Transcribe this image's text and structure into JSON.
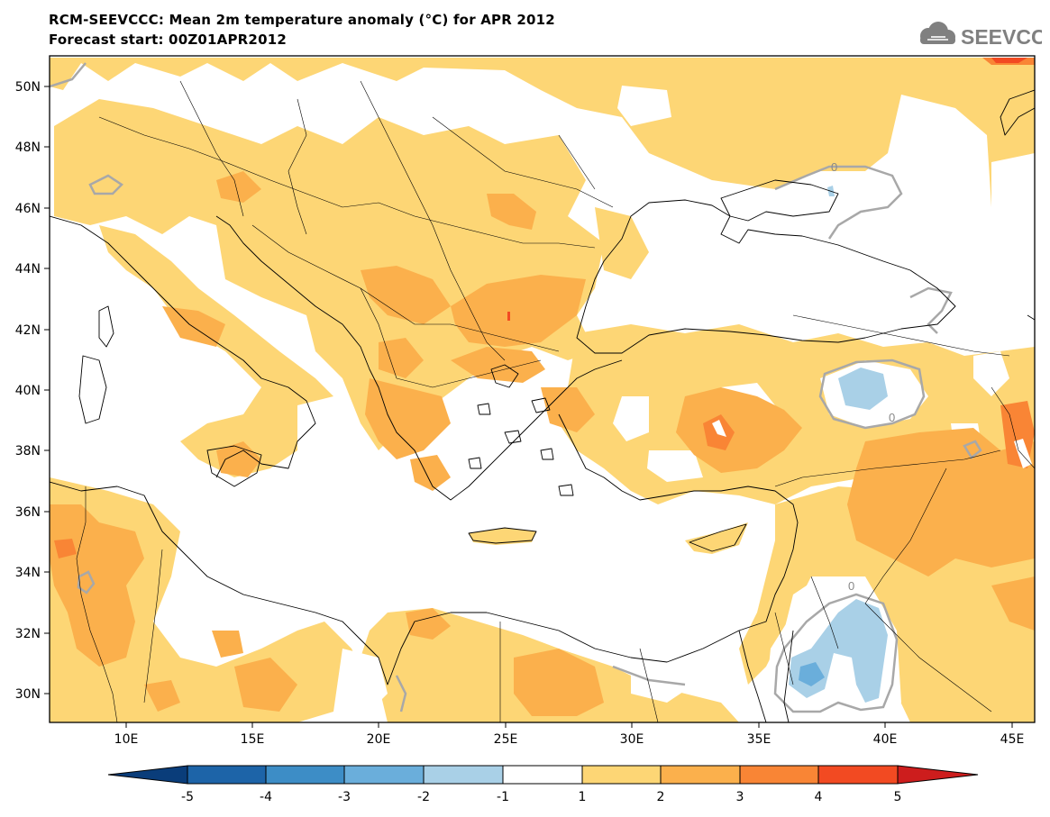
{
  "header": {
    "title": "RCM-SEEVCCC: Mean 2m temperature anomaly (°C) for APR 2012",
    "subtitle": "Forecast start: 00Z01APR2012",
    "logo_text": "SEEVCCC"
  },
  "map": {
    "lon_labels": [
      "10E",
      "15E",
      "20E",
      "25E",
      "30E",
      "35E",
      "40E",
      "45E"
    ],
    "lat_labels": [
      "50N",
      "48N",
      "46N",
      "44N",
      "42N",
      "40N",
      "38N",
      "36N",
      "34N",
      "32N",
      "30N"
    ],
    "contour_label": "0"
  },
  "colorbar": {
    "ticks": [
      "-5",
      "-4",
      "-3",
      "-2",
      "-1",
      "1",
      "2",
      "3",
      "4",
      "5"
    ],
    "colors": [
      "#0a3d7a",
      "#1d64a8",
      "#3d8dc6",
      "#6aaedb",
      "#a9d0e7",
      "#ffffff",
      "#fdd675",
      "#fbb04c",
      "#f98535",
      "#f24a22",
      "#cd1d1d"
    ]
  }
}
